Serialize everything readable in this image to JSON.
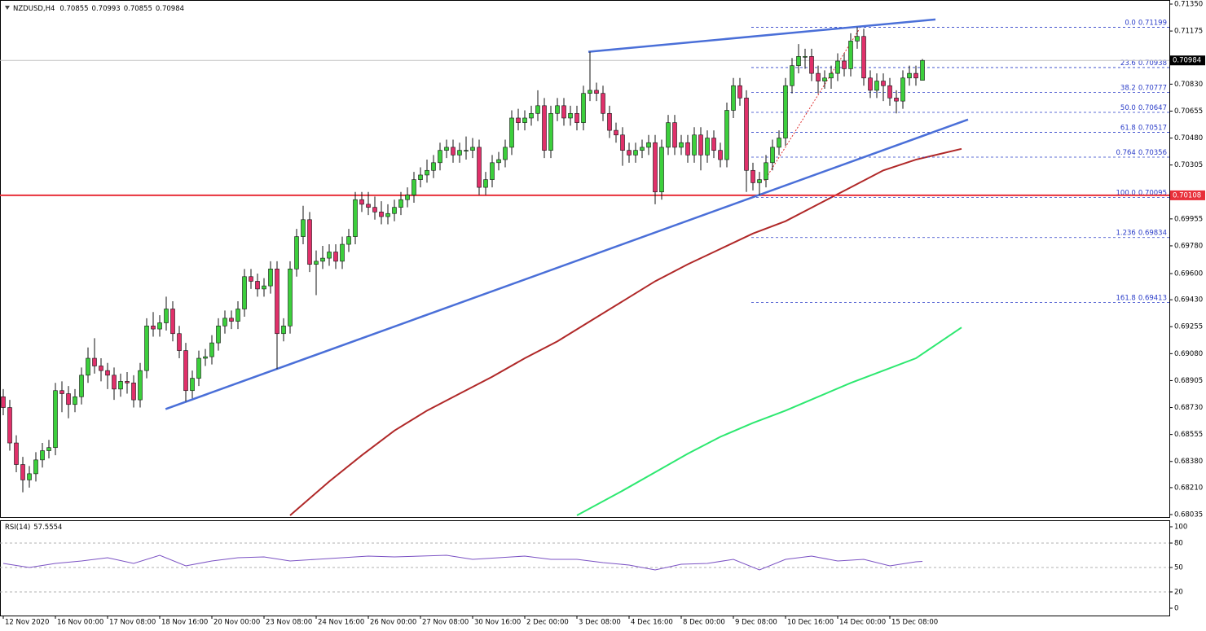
{
  "chart_data": [
    {
      "type": "candlestick",
      "title": "NZDUSD,H4",
      "categories": [
        "12 Nov 2020",
        null,
        null,
        null,
        null,
        null,
        null,
        null,
        "16 Nov 00:00",
        null,
        null,
        null,
        null,
        null,
        null,
        null,
        "17 Nov 08:00",
        null,
        null,
        null,
        null,
        null,
        null,
        null,
        "18 Nov 16:00",
        null,
        null,
        null,
        null,
        null,
        null,
        null,
        "20 Nov 00:00",
        null,
        null,
        null,
        null,
        null,
        null,
        null,
        "23 Nov 08:00",
        null,
        null,
        null,
        null,
        null,
        null,
        null,
        "24 Nov 16:00",
        null,
        null,
        null,
        null,
        null,
        null,
        null,
        "26 Nov 00:00",
        null,
        null,
        null,
        null,
        null,
        null,
        null,
        "27 Nov 08:00",
        null,
        null,
        null,
        null,
        null,
        null,
        null,
        "30 Nov 16:00",
        null,
        null,
        null,
        null,
        null,
        null,
        null,
        "2 Dec 00:00",
        null,
        null,
        null,
        null,
        null,
        null,
        null,
        "3 Dec 08:00",
        null,
        null,
        null,
        null,
        null,
        null,
        null,
        "4 Dec 16:00",
        null,
        null,
        null,
        null,
        null,
        null,
        null,
        "8 Dec 00:00",
        null,
        null,
        null,
        null,
        null,
        null,
        null,
        "9 Dec 08:00",
        null,
        null,
        null,
        null,
        null,
        null,
        null,
        "10 Dec 16:00",
        null,
        null,
        null,
        null,
        null,
        null,
        null,
        "14 Dec 00:00",
        null,
        null,
        null,
        null,
        null,
        null,
        null,
        "15 Dec 08:00",
        null,
        null,
        null,
        null,
        null
      ],
      "open": [
        0.688,
        0.6873,
        0.685,
        0.6836,
        0.6826,
        0.683,
        0.6839,
        0.6845,
        0.6847,
        0.6884,
        0.6882,
        0.6875,
        0.688,
        0.6894,
        0.6905,
        0.69,
        0.6897,
        0.6894,
        0.6885,
        0.689,
        0.6889,
        0.6878,
        0.6897,
        0.6926,
        0.6924,
        0.6928,
        0.6937,
        0.6921,
        0.691,
        0.6884,
        0.6892,
        0.6905,
        0.6906,
        0.6915,
        0.6926,
        0.6931,
        0.6929,
        0.6937,
        0.6958,
        0.6955,
        0.695,
        0.6952,
        0.6963,
        0.6921,
        0.6926,
        0.6963,
        0.6984,
        0.6995,
        0.6966,
        0.6968,
        0.697,
        0.6974,
        0.6968,
        0.6979,
        0.6984,
        0.7008,
        0.7005,
        0.7003,
        0.7,
        0.6997,
        0.6999,
        0.7003,
        0.7008,
        0.7011,
        0.7021,
        0.7024,
        0.7027,
        0.7032,
        0.704,
        0.7042,
        0.7037,
        0.704,
        0.704,
        0.7042,
        0.7016,
        0.7021,
        0.7032,
        0.7034,
        0.7042,
        0.7061,
        0.7058,
        0.7061,
        0.7064,
        0.7069,
        0.704,
        0.7064,
        0.7069,
        0.7061,
        0.7064,
        0.7058,
        0.7077,
        0.7079,
        0.7077,
        0.7064,
        0.7053,
        0.705,
        0.704,
        0.7037,
        0.704,
        0.7042,
        0.7045,
        0.7013,
        0.7042,
        0.7058,
        0.7042,
        0.7045,
        0.7037,
        0.705,
        0.7037,
        0.7048,
        0.704,
        0.7034,
        0.7066,
        0.7082,
        0.7074,
        0.7027,
        0.7019,
        0.7021,
        0.7032,
        0.7042,
        0.7048,
        0.7082,
        0.7095,
        0.7101,
        0.7101,
        0.709,
        0.7085,
        0.7087,
        0.709,
        0.7098,
        0.7093,
        0.7111,
        0.7114,
        0.7087,
        0.7079,
        0.7085,
        0.7082,
        0.7074,
        0.7072,
        0.7087,
        0.709,
        0.70855
      ],
      "high": [
        0.6885,
        0.6878,
        0.6855,
        0.6841,
        0.6835,
        0.6844,
        0.685,
        0.6852,
        0.6889,
        0.689,
        0.6887,
        0.6885,
        0.6899,
        0.6912,
        0.6918,
        0.6905,
        0.6902,
        0.6899,
        0.6895,
        0.6896,
        0.6894,
        0.6902,
        0.6931,
        0.6935,
        0.6933,
        0.6945,
        0.6942,
        0.6926,
        0.6915,
        0.6897,
        0.691,
        0.6911,
        0.692,
        0.6931,
        0.6936,
        0.6936,
        0.6942,
        0.6963,
        0.6963,
        0.696,
        0.6957,
        0.6968,
        0.6968,
        0.6931,
        0.6968,
        0.6989,
        0.7004,
        0.7,
        0.6975,
        0.6978,
        0.6979,
        0.6979,
        0.6984,
        0.6989,
        0.7013,
        0.7013,
        0.7013,
        0.701,
        0.7007,
        0.7005,
        0.7008,
        0.7013,
        0.7016,
        0.7026,
        0.7029,
        0.7034,
        0.7037,
        0.7045,
        0.7047,
        0.7047,
        0.7045,
        0.7049,
        0.7048,
        0.7047,
        0.7026,
        0.7037,
        0.7039,
        0.7047,
        0.7066,
        0.7067,
        0.7066,
        0.7069,
        0.7079,
        0.7074,
        0.7069,
        0.7074,
        0.7074,
        0.7069,
        0.7069,
        0.7082,
        0.7104,
        0.7084,
        0.7082,
        0.7069,
        0.7058,
        0.7055,
        0.7045,
        0.7045,
        0.7047,
        0.705,
        0.705,
        0.7047,
        0.7063,
        0.7063,
        0.705,
        0.705,
        0.7055,
        0.7055,
        0.7053,
        0.7053,
        0.7045,
        0.7071,
        0.7087,
        0.7087,
        0.7079,
        0.7032,
        0.7026,
        0.7037,
        0.7047,
        0.7053,
        0.7087,
        0.71,
        0.7109,
        0.7106,
        0.7106,
        0.7095,
        0.7092,
        0.7095,
        0.7103,
        0.7103,
        0.7116,
        0.712,
        0.7119,
        0.7092,
        0.709,
        0.709,
        0.7087,
        0.7079,
        0.7092,
        0.7095,
        0.7095,
        0.70993
      ],
      "low": [
        0.6868,
        0.6845,
        0.6831,
        0.6818,
        0.6821,
        0.6825,
        0.6834,
        0.684,
        0.6842,
        0.687,
        0.6866,
        0.687,
        0.6875,
        0.6889,
        0.6895,
        0.689,
        0.6885,
        0.6878,
        0.688,
        0.6882,
        0.6873,
        0.6873,
        0.6892,
        0.6919,
        0.6919,
        0.6923,
        0.6916,
        0.6905,
        0.6877,
        0.6879,
        0.6887,
        0.69,
        0.6901,
        0.691,
        0.6921,
        0.6924,
        0.6924,
        0.6932,
        0.695,
        0.6945,
        0.6945,
        0.6947,
        0.6898,
        0.6916,
        0.6921,
        0.6958,
        0.6979,
        0.6961,
        0.6946,
        0.6963,
        0.6965,
        0.6963,
        0.6963,
        0.6974,
        0.6979,
        0.7,
        0.6998,
        0.6995,
        0.6992,
        0.6992,
        0.6994,
        0.6998,
        0.7003,
        0.7006,
        0.7016,
        0.7019,
        0.7022,
        0.7027,
        0.7035,
        0.7032,
        0.7032,
        0.7034,
        0.7035,
        0.7011,
        0.7011,
        0.7016,
        0.7027,
        0.7029,
        0.7037,
        0.7053,
        0.7053,
        0.7056,
        0.7059,
        0.7035,
        0.7035,
        0.7059,
        0.7056,
        0.7056,
        0.7053,
        0.7053,
        0.7072,
        0.7072,
        0.7059,
        0.7048,
        0.7045,
        0.703,
        0.7032,
        0.7032,
        0.7035,
        0.7037,
        0.7005,
        0.7008,
        0.7037,
        0.7037,
        0.7037,
        0.7032,
        0.7032,
        0.7027,
        0.7032,
        0.7035,
        0.7029,
        0.7029,
        0.7061,
        0.7069,
        0.7013,
        0.7014,
        0.7011,
        0.7016,
        0.7027,
        0.7037,
        0.7043,
        0.7077,
        0.709,
        0.7093,
        0.7085,
        0.7077,
        0.708,
        0.708,
        0.7085,
        0.7088,
        0.7088,
        0.7106,
        0.7082,
        0.7074,
        0.7074,
        0.7072,
        0.7069,
        0.7064,
        0.7067,
        0.7082,
        0.7082,
        0.70855
      ],
      "close": [
        0.6873,
        0.685,
        0.6836,
        0.6826,
        0.683,
        0.6839,
        0.6845,
        0.6847,
        0.6884,
        0.6882,
        0.6875,
        0.688,
        0.6894,
        0.6905,
        0.69,
        0.6897,
        0.6894,
        0.6885,
        0.689,
        0.6889,
        0.6878,
        0.6897,
        0.6926,
        0.6924,
        0.6928,
        0.6937,
        0.6921,
        0.691,
        0.6884,
        0.6892,
        0.6905,
        0.6906,
        0.6915,
        0.6926,
        0.6931,
        0.6929,
        0.6937,
        0.6958,
        0.6955,
        0.695,
        0.6952,
        0.6963,
        0.6921,
        0.6926,
        0.6963,
        0.6984,
        0.6995,
        0.6966,
        0.6968,
        0.697,
        0.6974,
        0.6968,
        0.6979,
        0.6984,
        0.7008,
        0.7005,
        0.7003,
        0.7,
        0.6997,
        0.6999,
        0.7003,
        0.7008,
        0.7011,
        0.7021,
        0.7024,
        0.7027,
        0.7032,
        0.704,
        0.7042,
        0.7037,
        0.704,
        0.704,
        0.7042,
        0.7016,
        0.7021,
        0.7032,
        0.7034,
        0.7042,
        0.7061,
        0.7058,
        0.7061,
        0.7064,
        0.7069,
        0.704,
        0.7064,
        0.7069,
        0.7061,
        0.7064,
        0.7058,
        0.7077,
        0.7079,
        0.7077,
        0.7064,
        0.7053,
        0.705,
        0.704,
        0.7037,
        0.704,
        0.7042,
        0.7045,
        0.7013,
        0.7042,
        0.7058,
        0.7042,
        0.7045,
        0.7037,
        0.705,
        0.7037,
        0.7048,
        0.704,
        0.7034,
        0.7066,
        0.7082,
        0.7074,
        0.7027,
        0.7019,
        0.7021,
        0.7032,
        0.7042,
        0.7048,
        0.7082,
        0.7095,
        0.7101,
        0.7101,
        0.709,
        0.7085,
        0.7087,
        0.709,
        0.7098,
        0.7093,
        0.7111,
        0.7114,
        0.7087,
        0.7079,
        0.7085,
        0.7082,
        0.7074,
        0.7072,
        0.7087,
        0.709,
        0.7087,
        0.70984
      ],
      "bull_color": "#3ccf3c",
      "bear_color": "#e0306a",
      "ylim": [
        0.68035,
        0.7135
      ],
      "yticks": [
        {
          "value": 0.7135,
          "label": "0.71350"
        },
        0.71175,
        {
          "value": 0.7083,
          "label": "0.70830"
        },
        0.70655,
        {
          "value": 0.7048,
          "label": "0.70480"
        },
        0.70305,
        0.69955,
        {
          "value": 0.6978,
          "label": "0.69780"
        },
        {
          "value": 0.696,
          "label": "0.69600"
        },
        {
          "value": 0.6943,
          "label": "0.69430"
        },
        0.69255,
        {
          "value": 0.6908,
          "label": "0.69080"
        },
        0.68905,
        {
          "value": 0.6873,
          "label": "0.68730"
        },
        0.68555,
        {
          "value": 0.6838,
          "label": "0.68380"
        },
        {
          "value": 0.6821,
          "label": "0.68210"
        },
        0.68035
      ],
      "series": [
        {
          "color": "#b02828",
          "x": [
            44,
            50,
            55,
            60,
            65,
            70,
            75,
            80,
            85,
            90,
            95,
            100,
            105,
            110,
            115,
            120,
            125,
            130,
            135,
            140,
            147
          ],
          "values": [
            0.6803,
            0.6825,
            0.6842,
            0.6858,
            0.6871,
            0.6882,
            0.6893,
            0.6905,
            0.6916,
            0.6929,
            0.6942,
            0.6955,
            0.6966,
            0.6976,
            0.6986,
            0.6994,
            0.7005,
            0.7016,
            0.7027,
            0.7034,
            0.7041
          ]
        },
        {
          "color": "#2de870",
          "x": [
            88,
            95,
            100,
            105,
            110,
            115,
            120,
            125,
            130,
            135,
            140,
            147
          ],
          "values": [
            0.6803,
            0.6819,
            0.6831,
            0.6843,
            0.6854,
            0.6863,
            0.6871,
            0.688,
            0.6889,
            0.6897,
            0.6905,
            0.6925
          ]
        }
      ],
      "hlines": [
        {
          "value": 0.70108,
          "color": "#e8303a"
        }
      ],
      "trendlines": [
        {
          "color": "#4a6fd8",
          "x": [
            89.75,
            143
          ],
          "y": [
            0.7104,
            0.7125
          ]
        },
        {
          "color": "#4a6fd8",
          "x": [
            24.9,
            148
          ],
          "y": [
            0.6872,
            0.706
          ]
        }
      ],
      "fibonacci": {
        "color": "#2a3cc8",
        "levels": [
          {
            "level": "0.0",
            "price": 0.71199
          },
          {
            "level": "23.6",
            "price": 0.70938
          },
          {
            "level": "38.2",
            "price": 0.70777
          },
          {
            "level": "50.0",
            "price": 0.70647
          },
          {
            "level": "61.8",
            "price": 0.70517
          },
          {
            "level": "0.764",
            "price": 0.70356
          },
          {
            "level": "100.0",
            "price": 0.70095
          },
          {
            "level": "1.236",
            "price": 0.69834
          },
          {
            "level": "161.8",
            "price": 0.69413
          }
        ]
      }
    },
    {
      "type": "line",
      "title": "RSI(14)",
      "color": "#7b52c4",
      "x": [
        0,
        4,
        8,
        12,
        16,
        20,
        24,
        28,
        32,
        36,
        40,
        44,
        48,
        52,
        56,
        60,
        64,
        68,
        72,
        76,
        80,
        84,
        88,
        92,
        96,
        100,
        104,
        108,
        112,
        116,
        120,
        124,
        128,
        132,
        136,
        140,
        141
      ],
      "values": [
        55,
        50,
        55,
        58,
        62,
        55,
        65,
        52,
        58,
        62,
        63,
        58,
        60,
        62,
        64,
        63,
        64,
        65,
        60,
        62,
        64,
        60,
        60,
        56,
        53,
        47,
        54,
        55,
        60,
        47,
        60,
        64,
        58,
        60,
        52,
        57,
        57.5554
      ],
      "ylim": [
        0,
        100
      ],
      "yticks": [
        0,
        20,
        50,
        80,
        100
      ]
    }
  ]
}
